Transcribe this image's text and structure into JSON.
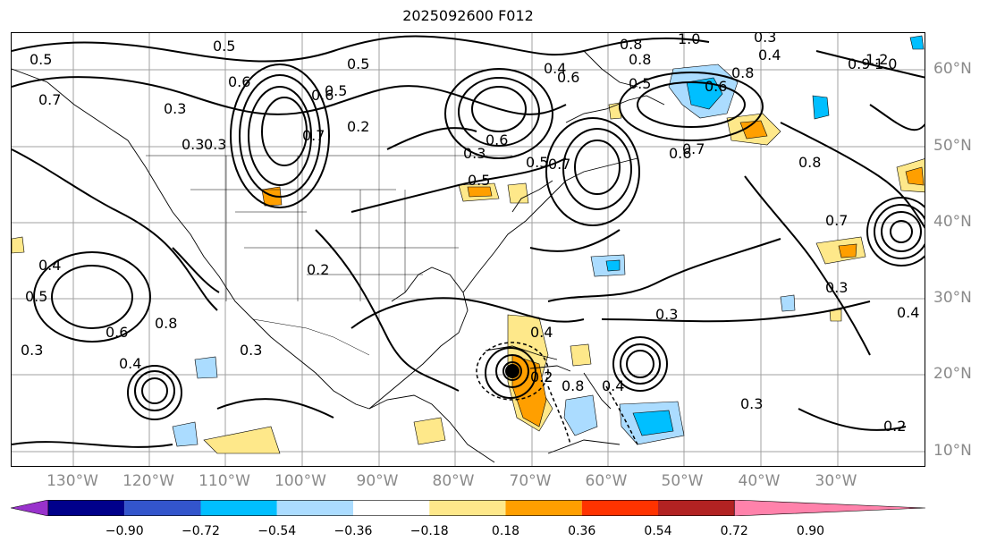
{
  "title": "2025092600 F012",
  "lon_labels": [
    "130°W",
    "120°W",
    "110°W",
    "100°W",
    "90°W",
    "80°W",
    "70°W",
    "60°W",
    "50°W",
    "40°W",
    "30°W"
  ],
  "lat_labels": [
    "60°N",
    "50°N",
    "40°N",
    "30°N",
    "20°N",
    "10°N"
  ],
  "colorbar": {
    "colors": [
      "#9932cc",
      "#00008b",
      "#3355cc",
      "#00bfff",
      "#abdcff",
      "#ffffff",
      "#fee88a",
      "#ff9f00",
      "#ff3300",
      "#b22222",
      "#ff82ab"
    ],
    "ticks": [
      "−0.90",
      "−0.72",
      "−0.54",
      "−0.36",
      "−0.18",
      "0.18",
      "0.36",
      "0.54",
      "0.72",
      "0.90"
    ]
  },
  "contour_labels": [
    "0.5",
    "0.5",
    "0.6",
    "0.3",
    "0.3",
    "0.5",
    "0.5",
    "0.6",
    "0.8",
    "1.0",
    "0.8",
    "0.6",
    "0.3",
    "0.4",
    "0.5",
    "0.8",
    "0.6",
    "0.7",
    "0.7",
    "0.6",
    "0.3",
    "0.6",
    "0.7",
    "0.3",
    "0.4",
    "0.5",
    "0.2",
    "0.2",
    "0.8",
    "0.6",
    "0.4",
    "0.5",
    "0.7",
    "0.3",
    "0.4",
    "0.8",
    "0.8",
    "0.7",
    "0.4",
    "0.3",
    "0.2",
    "0.3",
    "0.4",
    "0.3",
    "0.2",
    "0.5",
    "1.2",
    "1.0",
    "0.9",
    "0.4",
    "0.3"
  ]
}
